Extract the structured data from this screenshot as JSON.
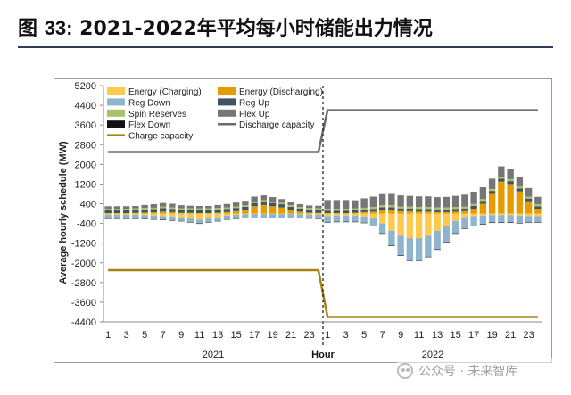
{
  "figure": {
    "label": "图",
    "number": "33:",
    "title": "2021-2022年平均每小时储能出力情况"
  },
  "watermark": {
    "text": "公众号 · 未来智库",
    "icon": "wechat-icon"
  },
  "chart_data": {
    "type": "bar",
    "stacked": true,
    "ylabel": "Average hourly schedule (MW)",
    "xlabel": "Hour",
    "ylim": [
      -4400,
      5200
    ],
    "yticks": [
      5200,
      4400,
      3600,
      2800,
      2000,
      1200,
      400,
      -400,
      -1200,
      -2000,
      -2800,
      -3600,
      -4400
    ],
    "categories": [
      1,
      2,
      3,
      4,
      5,
      6,
      7,
      8,
      9,
      10,
      11,
      12,
      13,
      14,
      15,
      16,
      17,
      18,
      19,
      20,
      21,
      22,
      23,
      24,
      1,
      2,
      3,
      4,
      5,
      6,
      7,
      8,
      9,
      10,
      11,
      12,
      13,
      14,
      15,
      16,
      17,
      18,
      19,
      20,
      21,
      22,
      23,
      24
    ],
    "tick_labels": [
      "1",
      "3",
      "5",
      "7",
      "9",
      "11",
      "13",
      "15",
      "17",
      "19",
      "21",
      "23",
      "1",
      "3",
      "5",
      "7",
      "9",
      "11",
      "13",
      "15",
      "17",
      "19",
      "21",
      "23"
    ],
    "groups": [
      "2021",
      "2022"
    ],
    "legend": [
      {
        "name": "Energy (Charging)",
        "color": "#ffc94d",
        "kind": "box"
      },
      {
        "name": "Energy (Discharging)",
        "color": "#e69b00",
        "kind": "box"
      },
      {
        "name": "Reg Down",
        "color": "#8fb4d0",
        "kind": "box"
      },
      {
        "name": "Reg Up",
        "color": "#3d5565",
        "kind": "box"
      },
      {
        "name": "Spin Reserves",
        "color": "#a9c16b",
        "kind": "box"
      },
      {
        "name": "Flex Up",
        "color": "#767676",
        "kind": "box"
      },
      {
        "name": "Flex Down",
        "color": "#111111",
        "kind": "box"
      },
      {
        "name": "Discharge capacity",
        "color": "#6b6b6b",
        "kind": "line"
      },
      {
        "name": "Charge capacity",
        "color": "#a88314",
        "kind": "line"
      }
    ],
    "series": [
      {
        "name": "Energy (Discharging)",
        "color": "#e69b00",
        "sign": 1,
        "values": [
          20,
          20,
          20,
          30,
          40,
          50,
          80,
          60,
          30,
          30,
          20,
          20,
          40,
          60,
          100,
          150,
          300,
          350,
          300,
          250,
          150,
          80,
          40,
          30,
          20,
          20,
          20,
          30,
          60,
          80,
          150,
          150,
          100,
          100,
          80,
          80,
          60,
          60,
          80,
          100,
          200,
          400,
          800,
          1300,
          1200,
          900,
          500,
          200
        ]
      },
      {
        "name": "Reg Up",
        "color": "#3d5565",
        "sign": 1,
        "values": [
          120,
          120,
          120,
          120,
          130,
          130,
          140,
          130,
          130,
          130,
          130,
          130,
          130,
          130,
          130,
          130,
          130,
          130,
          130,
          130,
          130,
          130,
          130,
          130,
          100,
          100,
          100,
          100,
          100,
          110,
          110,
          110,
          110,
          110,
          110,
          110,
          110,
          110,
          110,
          110,
          110,
          110,
          120,
          120,
          120,
          120,
          110,
          100
        ]
      },
      {
        "name": "Spin Reserves",
        "color": "#a9c16b",
        "sign": 1,
        "values": [
          60,
          60,
          60,
          60,
          60,
          60,
          60,
          60,
          60,
          60,
          60,
          60,
          60,
          60,
          60,
          60,
          60,
          60,
          60,
          60,
          60,
          60,
          60,
          60,
          80,
          80,
          80,
          80,
          80,
          80,
          80,
          80,
          80,
          80,
          80,
          80,
          80,
          80,
          80,
          80,
          80,
          80,
          80,
          80,
          80,
          80,
          80,
          80
        ]
      },
      {
        "name": "Flex Up",
        "color": "#767676",
        "sign": 1,
        "values": [
          100,
          100,
          100,
          100,
          120,
          140,
          150,
          150,
          120,
          100,
          100,
          100,
          120,
          140,
          160,
          180,
          200,
          200,
          180,
          150,
          130,
          110,
          100,
          100,
          350,
          350,
          350,
          330,
          380,
          420,
          450,
          460,
          450,
          430,
          430,
          430,
          420,
          430,
          450,
          480,
          500,
          480,
          420,
          420,
          400,
          380,
          350,
          300
        ]
      },
      {
        "name": "Energy (Charging)",
        "color": "#ffc94d",
        "sign": -1,
        "values": [
          50,
          50,
          50,
          50,
          60,
          80,
          100,
          120,
          150,
          200,
          250,
          200,
          150,
          80,
          50,
          30,
          20,
          20,
          20,
          20,
          20,
          30,
          40,
          50,
          100,
          80,
          80,
          80,
          120,
          200,
          400,
          700,
          900,
          1000,
          1000,
          900,
          700,
          500,
          300,
          150,
          100,
          80,
          60,
          60,
          60,
          80,
          100,
          100
        ]
      },
      {
        "name": "Reg Down",
        "color": "#8fb4d0",
        "sign": -1,
        "values": [
          150,
          150,
          150,
          150,
          150,
          150,
          150,
          150,
          150,
          150,
          150,
          150,
          150,
          150,
          150,
          150,
          150,
          150,
          150,
          150,
          150,
          150,
          150,
          150,
          250,
          250,
          250,
          250,
          250,
          300,
          400,
          600,
          800,
          900,
          900,
          850,
          750,
          650,
          500,
          450,
          400,
          350,
          300,
          300,
          300,
          300,
          250,
          250
        ]
      },
      {
        "name": "Flex Down",
        "color": "#111111",
        "sign": -1,
        "values": [
          10,
          10,
          10,
          10,
          10,
          10,
          10,
          10,
          10,
          10,
          10,
          10,
          10,
          10,
          10,
          10,
          10,
          10,
          10,
          10,
          10,
          10,
          10,
          10,
          20,
          20,
          20,
          20,
          20,
          20,
          20,
          20,
          20,
          20,
          20,
          20,
          20,
          20,
          20,
          20,
          20,
          20,
          20,
          20,
          20,
          20,
          20,
          20
        ]
      }
    ],
    "lines": [
      {
        "name": "Discharge capacity",
        "color": "#6b6b6b",
        "values_2021": 2500,
        "values_2022": 4200
      },
      {
        "name": "Charge capacity",
        "color": "#a88314",
        "values_2021": -2300,
        "values_2022": -4200
      }
    ]
  }
}
